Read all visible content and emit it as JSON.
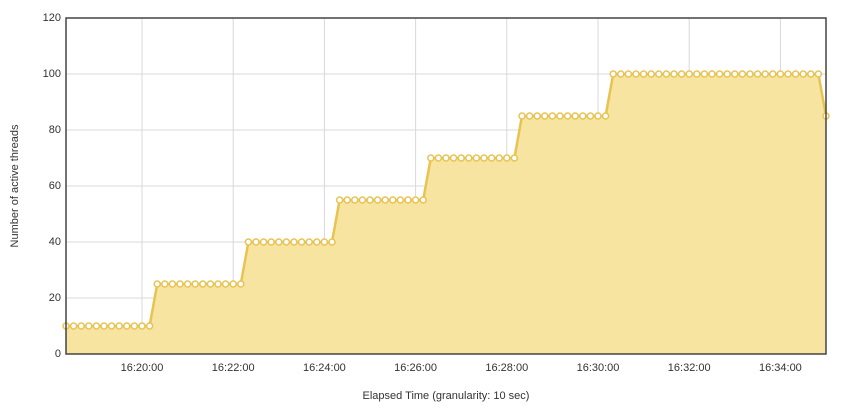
{
  "chart_data": {
    "type": "area",
    "x_label": "Elapsed Time (granularity: 10 sec)",
    "y_label": "Number of active threads",
    "x": [
      "16:18:20",
      "16:18:30",
      "16:18:40",
      "16:18:50",
      "16:19:00",
      "16:19:10",
      "16:19:20",
      "16:19:30",
      "16:19:40",
      "16:19:50",
      "16:20:00",
      "16:20:10",
      "16:20:20",
      "16:20:30",
      "16:20:40",
      "16:20:50",
      "16:21:00",
      "16:21:10",
      "16:21:20",
      "16:21:30",
      "16:21:40",
      "16:21:50",
      "16:22:00",
      "16:22:10",
      "16:22:20",
      "16:22:30",
      "16:22:40",
      "16:22:50",
      "16:23:00",
      "16:23:10",
      "16:23:20",
      "16:23:30",
      "16:23:40",
      "16:23:50",
      "16:24:00",
      "16:24:10",
      "16:24:20",
      "16:24:30",
      "16:24:40",
      "16:24:50",
      "16:25:00",
      "16:25:10",
      "16:25:20",
      "16:25:30",
      "16:25:40",
      "16:25:50",
      "16:26:00",
      "16:26:10",
      "16:26:20",
      "16:26:30",
      "16:26:40",
      "16:26:50",
      "16:27:00",
      "16:27:10",
      "16:27:20",
      "16:27:30",
      "16:27:40",
      "16:27:50",
      "16:28:00",
      "16:28:10",
      "16:28:20",
      "16:28:30",
      "16:28:40",
      "16:28:50",
      "16:29:00",
      "16:29:10",
      "16:29:20",
      "16:29:30",
      "16:29:40",
      "16:29:50",
      "16:30:00",
      "16:30:10",
      "16:30:20",
      "16:30:30",
      "16:30:40",
      "16:30:50",
      "16:31:00",
      "16:31:10",
      "16:31:20",
      "16:31:30",
      "16:31:40",
      "16:31:50",
      "16:32:00",
      "16:32:10",
      "16:32:20",
      "16:32:30",
      "16:32:40",
      "16:32:50",
      "16:33:00",
      "16:33:10",
      "16:33:20",
      "16:33:30",
      "16:33:40",
      "16:33:50",
      "16:34:00",
      "16:34:10",
      "16:34:20",
      "16:34:30",
      "16:34:40",
      "16:34:50",
      "16:35:00"
    ],
    "series": [
      {
        "color": "#e8c352",
        "fill": "#f7e4a1",
        "values": [
          10,
          10,
          10,
          10,
          10,
          10,
          10,
          10,
          10,
          10,
          10,
          10,
          25,
          25,
          25,
          25,
          25,
          25,
          25,
          25,
          25,
          25,
          25,
          25,
          40,
          40,
          40,
          40,
          40,
          40,
          40,
          40,
          40,
          40,
          40,
          40,
          55,
          55,
          55,
          55,
          55,
          55,
          55,
          55,
          55,
          55,
          55,
          55,
          70,
          70,
          70,
          70,
          70,
          70,
          70,
          70,
          70,
          70,
          70,
          70,
          85,
          85,
          85,
          85,
          85,
          85,
          85,
          85,
          85,
          85,
          85,
          85,
          100,
          100,
          100,
          100,
          100,
          100,
          100,
          100,
          100,
          100,
          100,
          100,
          100,
          100,
          100,
          100,
          100,
          100,
          100,
          100,
          100,
          100,
          100,
          100,
          100,
          100,
          100,
          100,
          85
        ]
      }
    ],
    "xlim": [
      "16:18:20",
      "16:35:00"
    ],
    "xticks": [
      "16:20:00",
      "16:22:00",
      "16:24:00",
      "16:26:00",
      "16:28:00",
      "16:30:00",
      "16:32:00",
      "16:34:00"
    ],
    "ylim": [
      0,
      120
    ],
    "yticks": [
      0,
      20,
      40,
      60,
      80,
      100,
      120
    ],
    "grid": true
  }
}
